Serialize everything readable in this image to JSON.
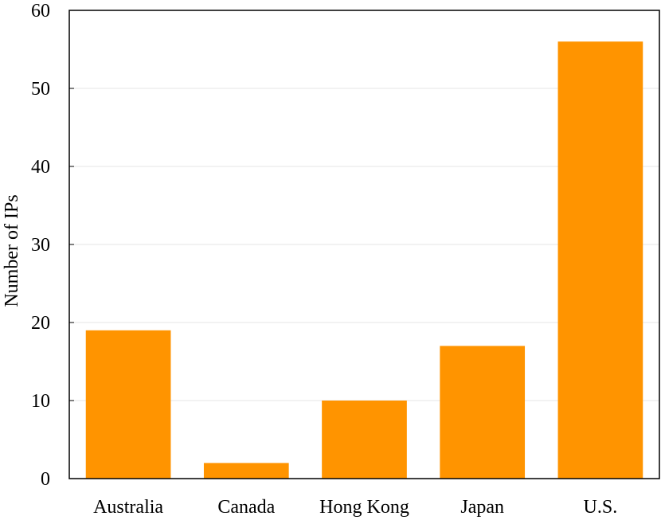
{
  "chart_data": {
    "type": "bar",
    "categories": [
      "Australia",
      "Canada",
      "Hong Kong",
      "Japan",
      "U.S."
    ],
    "values": [
      19,
      2,
      10,
      17,
      56
    ],
    "title": "",
    "xlabel": "",
    "ylabel": "Number of IPs",
    "ylim": [
      0,
      60
    ],
    "yticks": [
      0,
      10,
      20,
      30,
      40,
      50,
      60
    ],
    "grid": "horizontal",
    "legend": "none",
    "colors": {
      "bar": "#ff9400",
      "grid": "#e6e6e6",
      "axis": "#000000"
    }
  }
}
